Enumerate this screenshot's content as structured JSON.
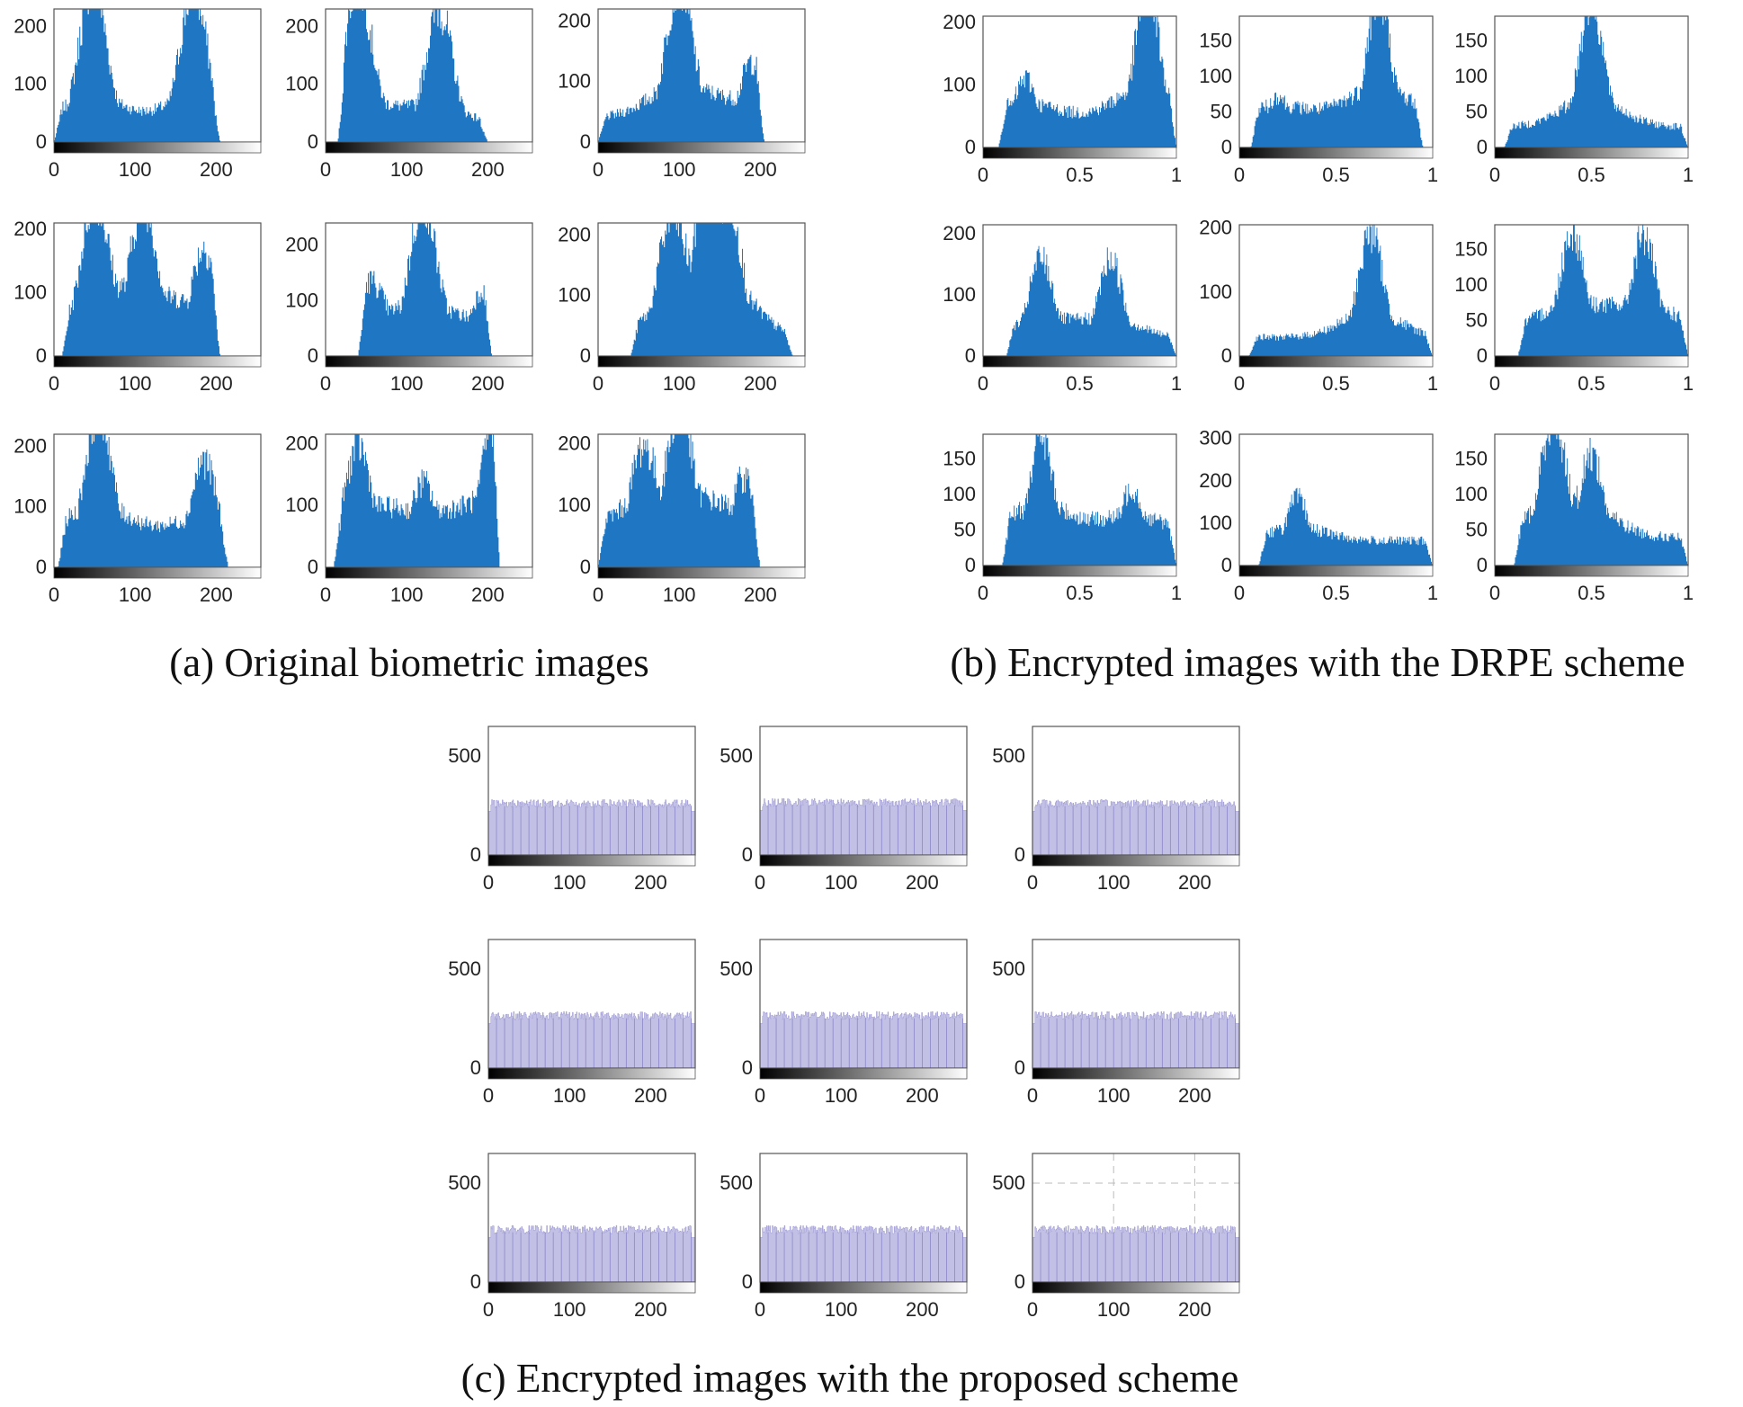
{
  "captions": {
    "a": "(a) Original biometric images",
    "b": "(b) Encrypted images with the DRPE scheme",
    "c": "(c) Encrypted images with the proposed scheme"
  },
  "colors": {
    "original_fill": "#1f77c4",
    "drpe_fill": "#1f77c4",
    "proposed_fill": "#c3c0e6",
    "proposed_line": "#8a86c8",
    "axis": "#555555",
    "grid": "#bbbbbb"
  },
  "chart_data": [
    {
      "group": "a",
      "index": 1,
      "type": "bar",
      "x_range": [
        0,
        255
      ],
      "ylim": [
        0,
        230
      ],
      "xticks": [
        0,
        100,
        200
      ],
      "yticks": [
        0,
        100,
        200
      ],
      "shape": "bimodal",
      "xticklabels": [
        "0",
        "100",
        "200"
      ],
      "yticklabels": [
        "0",
        "100",
        "200"
      ],
      "peaks": [
        {
          "x": 48,
          "y": 230
        },
        {
          "x": 172,
          "y": 220
        }
      ],
      "support": [
        0,
        205
      ],
      "baseline": 25
    },
    {
      "group": "a",
      "index": 2,
      "type": "bar",
      "x_range": [
        0,
        255
      ],
      "ylim": [
        0,
        230
      ],
      "xticks": [
        0,
        100,
        200
      ],
      "yticks": [
        0,
        100,
        200
      ],
      "xticklabels": [
        "0",
        "100",
        "200"
      ],
      "yticklabels": [
        "0",
        "100",
        "200"
      ],
      "peaks": [
        {
          "x": 40,
          "y": 230
        },
        {
          "x": 140,
          "y": 190
        }
      ],
      "support": [
        15,
        200
      ],
      "baseline": 20
    },
    {
      "group": "a",
      "index": 3,
      "type": "bar",
      "x_range": [
        0,
        255
      ],
      "ylim": [
        0,
        220
      ],
      "xticks": [
        0,
        100,
        200
      ],
      "yticks": [
        0,
        100,
        200
      ],
      "xticklabels": [
        "0",
        "100",
        "200"
      ],
      "yticklabels": [
        "0",
        "100",
        "200"
      ],
      "peaks": [
        {
          "x": 100,
          "y": 220
        },
        {
          "x": 190,
          "y": 110
        }
      ],
      "support": [
        0,
        205
      ],
      "baseline": 40
    },
    {
      "group": "a",
      "index": 4,
      "type": "bar",
      "x_range": [
        0,
        255
      ],
      "ylim": [
        0,
        210
      ],
      "xticks": [
        0,
        100,
        200
      ],
      "yticks": [
        0,
        100,
        200
      ],
      "xticklabels": [
        "0",
        "100",
        "200"
      ],
      "yticklabels": [
        "0",
        "100",
        "200"
      ],
      "peaks": [
        {
          "x": 50,
          "y": 200
        },
        {
          "x": 110,
          "y": 200
        },
        {
          "x": 185,
          "y": 140
        }
      ],
      "support": [
        10,
        205
      ],
      "baseline": 40
    },
    {
      "group": "a",
      "index": 5,
      "type": "bar",
      "x_range": [
        0,
        255
      ],
      "ylim": [
        0,
        240
      ],
      "xticks": [
        0,
        100,
        200
      ],
      "yticks": [
        0,
        100,
        200
      ],
      "xticklabels": [
        "0",
        "100",
        "200"
      ],
      "yticklabels": [
        "0",
        "100",
        "200"
      ],
      "peaks": [
        {
          "x": 55,
          "y": 100
        },
        {
          "x": 120,
          "y": 230
        },
        {
          "x": 195,
          "y": 100
        }
      ],
      "support": [
        40,
        205
      ],
      "baseline": 30
    },
    {
      "group": "a",
      "index": 6,
      "type": "bar",
      "x_range": [
        0,
        255
      ],
      "ylim": [
        0,
        220
      ],
      "xticks": [
        0,
        100,
        200
      ],
      "yticks": [
        0,
        100,
        200
      ],
      "xticklabels": [
        "0",
        "100",
        "200"
      ],
      "yticklabels": [
        "0",
        "100",
        "200"
      ],
      "peaks": [
        {
          "x": 90,
          "y": 160
        },
        {
          "x": 135,
          "y": 220
        },
        {
          "x": 160,
          "y": 220
        }
      ],
      "support": [
        40,
        240
      ],
      "baseline": 30
    },
    {
      "group": "a",
      "index": 7,
      "type": "bar",
      "x_range": [
        0,
        255
      ],
      "ylim": [
        0,
        220
      ],
      "xticks": [
        0,
        100,
        200
      ],
      "yticks": [
        0,
        100,
        200
      ],
      "xticklabels": [
        "0",
        "100",
        "200"
      ],
      "yticklabels": [
        "0",
        "100",
        "200"
      ],
      "peaks": [
        {
          "x": 55,
          "y": 220
        },
        {
          "x": 185,
          "y": 145
        }
      ],
      "support": [
        5,
        215
      ],
      "baseline": 50
    },
    {
      "group": "a",
      "index": 8,
      "type": "bar",
      "x_range": [
        0,
        255
      ],
      "ylim": [
        0,
        215
      ],
      "xticks": [
        0,
        100,
        200
      ],
      "yticks": [
        0,
        100,
        200
      ],
      "xticklabels": [
        "0",
        "100",
        "200"
      ],
      "yticklabels": [
        "0",
        "100",
        "200"
      ],
      "peaks": [
        {
          "x": 40,
          "y": 160
        },
        {
          "x": 120,
          "y": 110
        },
        {
          "x": 210,
          "y": 215
        }
      ],
      "support": [
        10,
        215
      ],
      "baseline": 60
    },
    {
      "group": "a",
      "index": 9,
      "type": "bar",
      "x_range": [
        0,
        255
      ],
      "ylim": [
        0,
        215
      ],
      "xticks": [
        0,
        100,
        200
      ],
      "yticks": [
        0,
        100,
        200
      ],
      "xticklabels": [
        "0",
        "100",
        "200"
      ],
      "yticklabels": [
        "0",
        "100",
        "200"
      ],
      "peaks": [
        {
          "x": 55,
          "y": 140
        },
        {
          "x": 100,
          "y": 215
        },
        {
          "x": 180,
          "y": 120
        }
      ],
      "support": [
        0,
        200
      ],
      "baseline": 60
    },
    {
      "group": "b",
      "index": 1,
      "type": "bar",
      "x_range": [
        0,
        1
      ],
      "ylim": [
        0,
        210
      ],
      "xticks": [
        0,
        0.5,
        1
      ],
      "yticks": [
        0,
        100,
        200
      ],
      "xticklabels": [
        "0",
        "0.5",
        "1"
      ],
      "yticklabels": [
        "0",
        "100",
        "200"
      ],
      "peaks": [
        {
          "x": 0.22,
          "y": 90
        },
        {
          "x": 0.85,
          "y": 210
        }
      ],
      "support": [
        0.08,
        1
      ],
      "baseline": 50
    },
    {
      "group": "b",
      "index": 2,
      "type": "bar",
      "x_range": [
        0,
        1
      ],
      "ylim": [
        0,
        185
      ],
      "xticks": [
        0,
        0.5,
        1
      ],
      "yticks": [
        0,
        50,
        100,
        150
      ],
      "xticklabels": [
        "0",
        "0.5",
        "1"
      ],
      "yticklabels": [
        "0",
        "50",
        "100",
        "150"
      ],
      "peaks": [
        {
          "x": 0.2,
          "y": 60
        },
        {
          "x": 0.72,
          "y": 175
        }
      ],
      "support": [
        0.06,
        0.95
      ],
      "baseline": 45
    },
    {
      "group": "b",
      "index": 3,
      "type": "bar",
      "x_range": [
        0,
        1
      ],
      "ylim": [
        0,
        185
      ],
      "xticks": [
        0,
        0.5,
        1
      ],
      "yticks": [
        0,
        50,
        100,
        150
      ],
      "xticklabels": [
        "0",
        "0.5",
        "1"
      ],
      "yticklabels": [
        "0",
        "50",
        "100",
        "150"
      ],
      "peaks": [
        {
          "x": 0.5,
          "y": 170
        }
      ],
      "support": [
        0.05,
        1
      ],
      "baseline": 30
    },
    {
      "group": "b",
      "index": 4,
      "type": "bar",
      "x_range": [
        0,
        1
      ],
      "ylim": [
        0,
        215
      ],
      "xticks": [
        0,
        0.5,
        1
      ],
      "yticks": [
        0,
        100,
        200
      ],
      "xticklabels": [
        "0",
        "0.5",
        "1"
      ],
      "yticklabels": [
        "0",
        "100",
        "200"
      ],
      "peaks": [
        {
          "x": 0.3,
          "y": 130
        },
        {
          "x": 0.66,
          "y": 130
        }
      ],
      "support": [
        0.12,
        1
      ],
      "baseline": 30
    },
    {
      "group": "b",
      "index": 5,
      "type": "bar",
      "x_range": [
        0,
        1
      ],
      "ylim": [
        0,
        205
      ],
      "xticks": [
        0,
        0.5,
        1
      ],
      "yticks": [
        0,
        100,
        200
      ],
      "xticklabels": [
        "0",
        "0.5",
        "1"
      ],
      "yticklabels": [
        "0",
        "100",
        "200"
      ],
      "peaks": [
        {
          "x": 0.68,
          "y": 160
        }
      ],
      "support": [
        0.05,
        1
      ],
      "baseline": 30
    },
    {
      "group": "b",
      "index": 6,
      "type": "bar",
      "x_range": [
        0,
        1
      ],
      "ylim": [
        0,
        185
      ],
      "xticks": [
        0,
        0.5,
        1
      ],
      "yticks": [
        0,
        50,
        100,
        150
      ],
      "xticklabels": [
        "0",
        "0.5",
        "1"
      ],
      "yticklabels": [
        "0",
        "50",
        "100",
        "150"
      ],
      "peaks": [
        {
          "x": 0.4,
          "y": 145
        },
        {
          "x": 0.77,
          "y": 140
        }
      ],
      "support": [
        0.12,
        1
      ],
      "baseline": 40
    },
    {
      "group": "b",
      "index": 7,
      "type": "bar",
      "x_range": [
        0,
        1
      ],
      "ylim": [
        0,
        185
      ],
      "xticks": [
        0,
        0.5,
        1
      ],
      "yticks": [
        0,
        50,
        100,
        150
      ],
      "xticklabels": [
        "0",
        "0.5",
        "1"
      ],
      "yticklabels": [
        "0",
        "50",
        "100",
        "150"
      ],
      "peaks": [
        {
          "x": 0.3,
          "y": 150
        },
        {
          "x": 0.77,
          "y": 90
        }
      ],
      "support": [
        0.1,
        1
      ],
      "baseline": 50
    },
    {
      "group": "b",
      "index": 8,
      "type": "bar",
      "x_range": [
        0,
        1
      ],
      "ylim": [
        0,
        310
      ],
      "xticks": [
        0,
        0.5,
        1
      ],
      "yticks": [
        0,
        100,
        200,
        300
      ],
      "xticklabels": [
        "0",
        "0.5",
        "1"
      ],
      "yticklabels": [
        "0",
        "100",
        "200",
        "300"
      ],
      "peaks": [
        {
          "x": 0.3,
          "y": 130
        }
      ],
      "support": [
        0.1,
        1
      ],
      "baseline": 60
    },
    {
      "group": "b",
      "index": 9,
      "type": "bar",
      "x_range": [
        0,
        1
      ],
      "ylim": [
        0,
        185
      ],
      "xticks": [
        0,
        0.5,
        1
      ],
      "yticks": [
        0,
        50,
        100,
        150
      ],
      "xticklabels": [
        "0",
        "0.5",
        "1"
      ],
      "yticklabels": [
        "0",
        "50",
        "100",
        "150"
      ],
      "peaks": [
        {
          "x": 0.3,
          "y": 165
        },
        {
          "x": 0.5,
          "y": 130
        }
      ],
      "support": [
        0.1,
        1
      ],
      "baseline": 40
    },
    {
      "group": "c",
      "index": 1,
      "type": "bar",
      "x_range": [
        0,
        255
      ],
      "ylim": [
        0,
        650
      ],
      "xticks": [
        0,
        100,
        200
      ],
      "yticks": [
        0,
        500
      ],
      "xticklabels": [
        "0",
        "100",
        "200"
      ],
      "yticklabels": [
        "0",
        "500"
      ],
      "uniform_level": 260
    },
    {
      "group": "c",
      "index": 2,
      "type": "bar",
      "x_range": [
        0,
        255
      ],
      "ylim": [
        0,
        650
      ],
      "xticks": [
        0,
        100,
        200
      ],
      "yticks": [
        0,
        500
      ],
      "xticklabels": [
        "0",
        "100",
        "200"
      ],
      "yticklabels": [
        "0",
        "500"
      ],
      "uniform_level": 265
    },
    {
      "group": "c",
      "index": 3,
      "type": "bar",
      "x_range": [
        0,
        255
      ],
      "ylim": [
        0,
        650
      ],
      "xticks": [
        0,
        100,
        200
      ],
      "yticks": [
        0,
        500
      ],
      "xticklabels": [
        "0",
        "100",
        "200"
      ],
      "yticklabels": [
        "0",
        "500"
      ],
      "uniform_level": 260
    },
    {
      "group": "c",
      "index": 4,
      "type": "bar",
      "x_range": [
        0,
        255
      ],
      "ylim": [
        0,
        650
      ],
      "xticks": [
        0,
        100,
        200
      ],
      "yticks": [
        0,
        500
      ],
      "xticklabels": [
        "0",
        "100",
        "200"
      ],
      "yticklabels": [
        "0",
        "500"
      ],
      "uniform_level": 265
    },
    {
      "group": "c",
      "index": 5,
      "type": "bar",
      "x_range": [
        0,
        255
      ],
      "ylim": [
        0,
        650
      ],
      "xticks": [
        0,
        100,
        200
      ],
      "yticks": [
        0,
        500
      ],
      "xticklabels": [
        "0",
        "100",
        "200"
      ],
      "yticklabels": [
        "0",
        "500"
      ],
      "uniform_level": 265
    },
    {
      "group": "c",
      "index": 6,
      "type": "bar",
      "x_range": [
        0,
        255
      ],
      "ylim": [
        0,
        650
      ],
      "xticks": [
        0,
        100,
        200
      ],
      "yticks": [
        0,
        500
      ],
      "xticklabels": [
        "0",
        "100",
        "200"
      ],
      "yticklabels": [
        "0",
        "500"
      ],
      "uniform_level": 265
    },
    {
      "group": "c",
      "index": 7,
      "type": "bar",
      "x_range": [
        0,
        255
      ],
      "ylim": [
        0,
        650
      ],
      "xticks": [
        0,
        100,
        200
      ],
      "yticks": [
        0,
        500
      ],
      "xticklabels": [
        "0",
        "100",
        "200"
      ],
      "yticklabels": [
        "0",
        "500"
      ],
      "uniform_level": 265
    },
    {
      "group": "c",
      "index": 8,
      "type": "bar",
      "x_range": [
        0,
        255
      ],
      "ylim": [
        0,
        650
      ],
      "xticks": [
        0,
        100,
        200
      ],
      "yticks": [
        0,
        500
      ],
      "xticklabels": [
        "0",
        "100",
        "200"
      ],
      "yticklabels": [
        "0",
        "500"
      ],
      "uniform_level": 265
    },
    {
      "group": "c",
      "index": 9,
      "type": "bar",
      "x_range": [
        0,
        255
      ],
      "ylim": [
        0,
        650
      ],
      "xticks": [
        0,
        100,
        200
      ],
      "yticks": [
        0,
        500
      ],
      "xticklabels": [
        "0",
        "100",
        "200"
      ],
      "yticklabels": [
        "0",
        "500"
      ],
      "uniform_level": 265,
      "grid": true
    }
  ]
}
